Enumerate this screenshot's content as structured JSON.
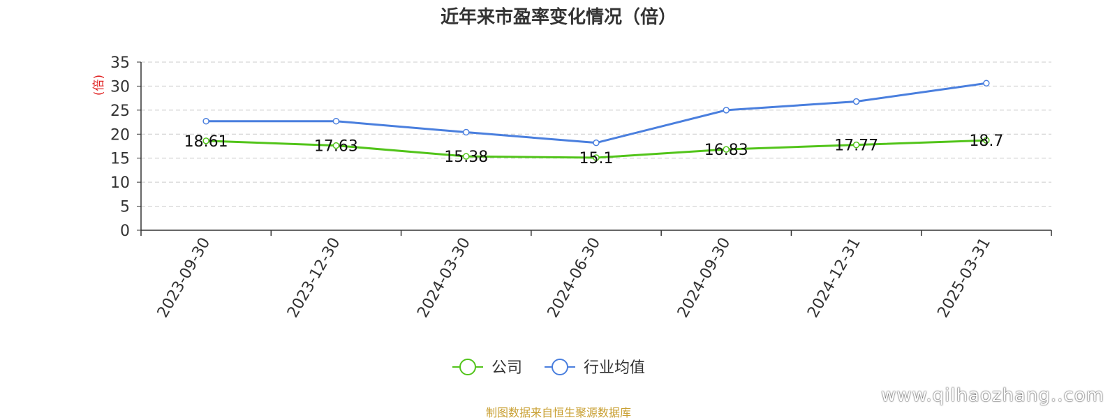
{
  "title": "近年来市盈率变化情况（倍）",
  "chart_data": {
    "type": "line",
    "categories": [
      "2023-09-30",
      "2023-12-30",
      "2024-03-30",
      "2024-06-30",
      "2024-09-30",
      "2024-12-31",
      "2025-03-31"
    ],
    "series": [
      {
        "name": "公司",
        "values": [
          18.61,
          17.63,
          15.38,
          15.1,
          16.83,
          17.77,
          18.7
        ],
        "labels": [
          "18.61",
          "17.63",
          "15.38",
          "15.1",
          "16.83",
          "17.77",
          "18.7"
        ],
        "color": "#52c41a"
      },
      {
        "name": "行业均值",
        "values": [
          22.7,
          22.7,
          20.4,
          18.2,
          25.0,
          26.8,
          30.6
        ],
        "color": "#4a7fde"
      }
    ],
    "ylabel": "(倍)",
    "ylabel_color": "#e02020",
    "ylim": [
      0,
      35
    ],
    "yticks": [
      0,
      5,
      10,
      15,
      20,
      25,
      30,
      35
    ],
    "grid": true,
    "legend_position": "bottom"
  },
  "source": "制图数据来自恒生聚源数据库",
  "watermark": "www.qilhaozhang..com"
}
